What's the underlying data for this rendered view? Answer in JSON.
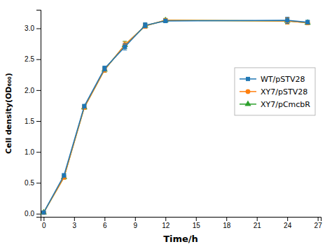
{
  "chart_data": {
    "type": "line",
    "xlabel": "Time/h",
    "ylabel": "Cell density(OD₆₀₀)",
    "x": [
      0,
      2,
      4,
      6,
      8,
      10,
      12,
      24,
      26
    ],
    "series": [
      {
        "name": "WT/pSTV28",
        "marker": "square",
        "line_style": "solid",
        "values": [
          0.02,
          0.62,
          1.74,
          2.35,
          2.7,
          3.05,
          3.12,
          3.13,
          3.1
        ],
        "errors": [
          0.01,
          0.03,
          0.03,
          0.04,
          0.05,
          0.04,
          0.03,
          0.05,
          0.03
        ]
      },
      {
        "name": "XY7/pSTV28",
        "marker": "circle",
        "line_style": "solid",
        "values": [
          0.02,
          0.59,
          1.72,
          2.33,
          2.73,
          3.04,
          3.13,
          3.12,
          3.09
        ],
        "errors": [
          0.01,
          0.03,
          0.03,
          0.04,
          0.05,
          0.04,
          0.03,
          0.05,
          0.03
        ]
      },
      {
        "name": "XY7/pCmcbR",
        "marker": "triangle",
        "line_style": "solid",
        "values": [
          0.02,
          0.59,
          1.72,
          2.33,
          2.73,
          3.04,
          3.13,
          3.12,
          3.09
        ],
        "errors": [
          0.01,
          0.03,
          0.03,
          0.04,
          0.06,
          0.04,
          0.03,
          0.05,
          0.03
        ]
      }
    ],
    "xlim": [
      -0.3,
      27.3
    ],
    "ylim": [
      -0.05,
      3.3
    ],
    "xticks": [
      0,
      3,
      6,
      9,
      12,
      15,
      18,
      21,
      24,
      27
    ],
    "yticks": [
      {
        "value": 0.0,
        "label": "0.0"
      },
      0.5,
      {
        "value": 1.0,
        "label": "1.0"
      },
      1.5,
      {
        "value": 2.0,
        "label": "2.0"
      },
      2.5,
      {
        "value": 3.0,
        "label": "3.0"
      }
    ],
    "grid": false,
    "legend": "upper right"
  }
}
